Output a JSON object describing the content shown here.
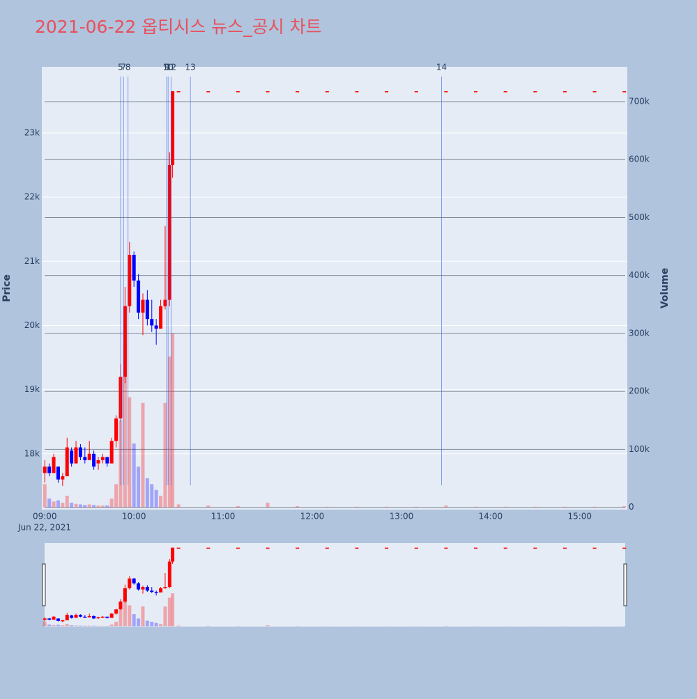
{
  "chart_data": {
    "type": "candlestick",
    "title": "2021-06-22 옵티시스 뉴스_공시 차트",
    "y_label": "Price",
    "y2_label": "Volume",
    "x_date_label": "Jun 22, 2021",
    "increasing_color": "#ff0000",
    "decreasing_color": "#0000ff",
    "news_color": "#4169e1",
    "x": [
      "09:00",
      "09:03",
      "09:06",
      "09:09",
      "09:12",
      "09:15",
      "09:18",
      "09:21",
      "09:24",
      "09:27",
      "09:30",
      "09:33",
      "09:36",
      "09:39",
      "09:42",
      "09:45",
      "09:48",
      "09:51",
      "09:54",
      "09:57",
      "10:00",
      "10:03",
      "10:06",
      "10:09",
      "10:12",
      "10:15",
      "10:18",
      "10:21",
      "10:24",
      "10:26",
      "10:30",
      "10:50",
      "11:10",
      "11:30",
      "11:50",
      "12:10",
      "12:30",
      "12:50",
      "13:10",
      "13:30",
      "13:50",
      "14:10",
      "14:30",
      "14:50",
      "15:10",
      "15:30"
    ],
    "open": [
      17700,
      17800,
      17700,
      17800,
      17600,
      17650,
      18050,
      17850,
      18100,
      17950,
      17900,
      18000,
      17850,
      17900,
      17950,
      17850,
      18200,
      18550,
      19200,
      20300,
      21100,
      20700,
      20200,
      20400,
      20100,
      20000,
      19950,
      20300,
      20400,
      22500,
      23650,
      23650,
      23650,
      23650,
      23650,
      23650,
      23650,
      23650,
      23650,
      23650,
      23650,
      23650,
      23650,
      23650,
      23650,
      23650
    ],
    "high": [
      17900,
      17850,
      18000,
      17800,
      17700,
      18250,
      18100,
      18200,
      18150,
      18100,
      18200,
      18050,
      17950,
      18000,
      17950,
      18250,
      18600,
      19400,
      20600,
      21300,
      21150,
      20800,
      20500,
      20550,
      20400,
      20100,
      20400,
      21550,
      22700,
      23650,
      23650,
      23650,
      23650,
      23650,
      23650,
      23650,
      23650,
      23650,
      23650,
      23650,
      23650,
      23650,
      23650,
      23650,
      23650,
      23650
    ],
    "low": [
      17550,
      17650,
      17700,
      17550,
      17500,
      17650,
      17800,
      17850,
      17900,
      17850,
      17900,
      17750,
      17750,
      17850,
      17800,
      17850,
      18100,
      18500,
      19100,
      20200,
      20600,
      20100,
      19850,
      20000,
      19900,
      19700,
      19950,
      20250,
      20300,
      22300,
      23650,
      23650,
      23650,
      23650,
      23650,
      23650,
      23650,
      23650,
      23650,
      23650,
      23650,
      23650,
      23650,
      23650,
      23650,
      23650
    ],
    "close": [
      17800,
      17700,
      17950,
      17600,
      17650,
      18100,
      17850,
      18100,
      17950,
      17900,
      18000,
      17800,
      17900,
      17950,
      17850,
      18200,
      18550,
      19200,
      20300,
      21100,
      20700,
      20200,
      20400,
      20100,
      20000,
      19950,
      20300,
      20400,
      22500,
      23650,
      23650,
      23650,
      23650,
      23650,
      23650,
      23650,
      23650,
      23650,
      23650,
      23650,
      23650,
      23650,
      23650,
      23650,
      23650,
      23650
    ],
    "volume": [
      40000,
      15000,
      10000,
      12000,
      8000,
      20000,
      8000,
      6000,
      5000,
      4000,
      5000,
      4000,
      3000,
      3000,
      3000,
      15000,
      40000,
      150000,
      280000,
      190000,
      110000,
      70000,
      180000,
      50000,
      40000,
      30000,
      20000,
      180000,
      260000,
      300000,
      5000,
      3000,
      2000,
      8000,
      2000,
      1000,
      1000,
      1000,
      1000,
      3000,
      1000,
      1000,
      1000,
      1000,
      1000,
      2000
    ],
    "news": [
      {
        "label": "5",
        "x": "09:51"
      },
      {
        "label": "7",
        "x": "09:53"
      },
      {
        "label": "8",
        "x": "09:56"
      },
      {
        "label": "9",
        "x": "10:22"
      },
      {
        "label": "10",
        "x": "10:23"
      },
      {
        "label": "12",
        "x": "10:25"
      },
      {
        "label": "13",
        "x": "10:38"
      },
      {
        "label": "14",
        "x": "13:27"
      }
    ],
    "xlim": [
      "08:58",
      "15:32"
    ],
    "xticks": [
      "09:00",
      "10:00",
      "11:00",
      "12:00",
      "13:00",
      "14:00",
      "15:00"
    ],
    "ylim": [
      17130,
      24030
    ],
    "yticks": [
      {
        "value": 18000,
        "label": "18k"
      },
      {
        "value": 19000,
        "label": "19k"
      },
      {
        "value": 20000,
        "label": "20k"
      },
      {
        "value": 21000,
        "label": "21k"
      },
      {
        "value": 22000,
        "label": "22k"
      },
      {
        "value": 23000,
        "label": "23k"
      }
    ],
    "y2lim": [
      -4000,
      760000
    ],
    "y2ticks": [
      0,
      {
        "value": 100000,
        "label": "100k"
      },
      {
        "value": 200000,
        "label": "200k"
      },
      {
        "value": 300000,
        "label": "300k"
      },
      {
        "value": 400000,
        "label": "400k"
      },
      {
        "value": 500000,
        "label": "500k"
      },
      {
        "value": 600000,
        "label": "600k"
      },
      {
        "value": 700000,
        "label": "700k"
      }
    ],
    "grid": true
  }
}
